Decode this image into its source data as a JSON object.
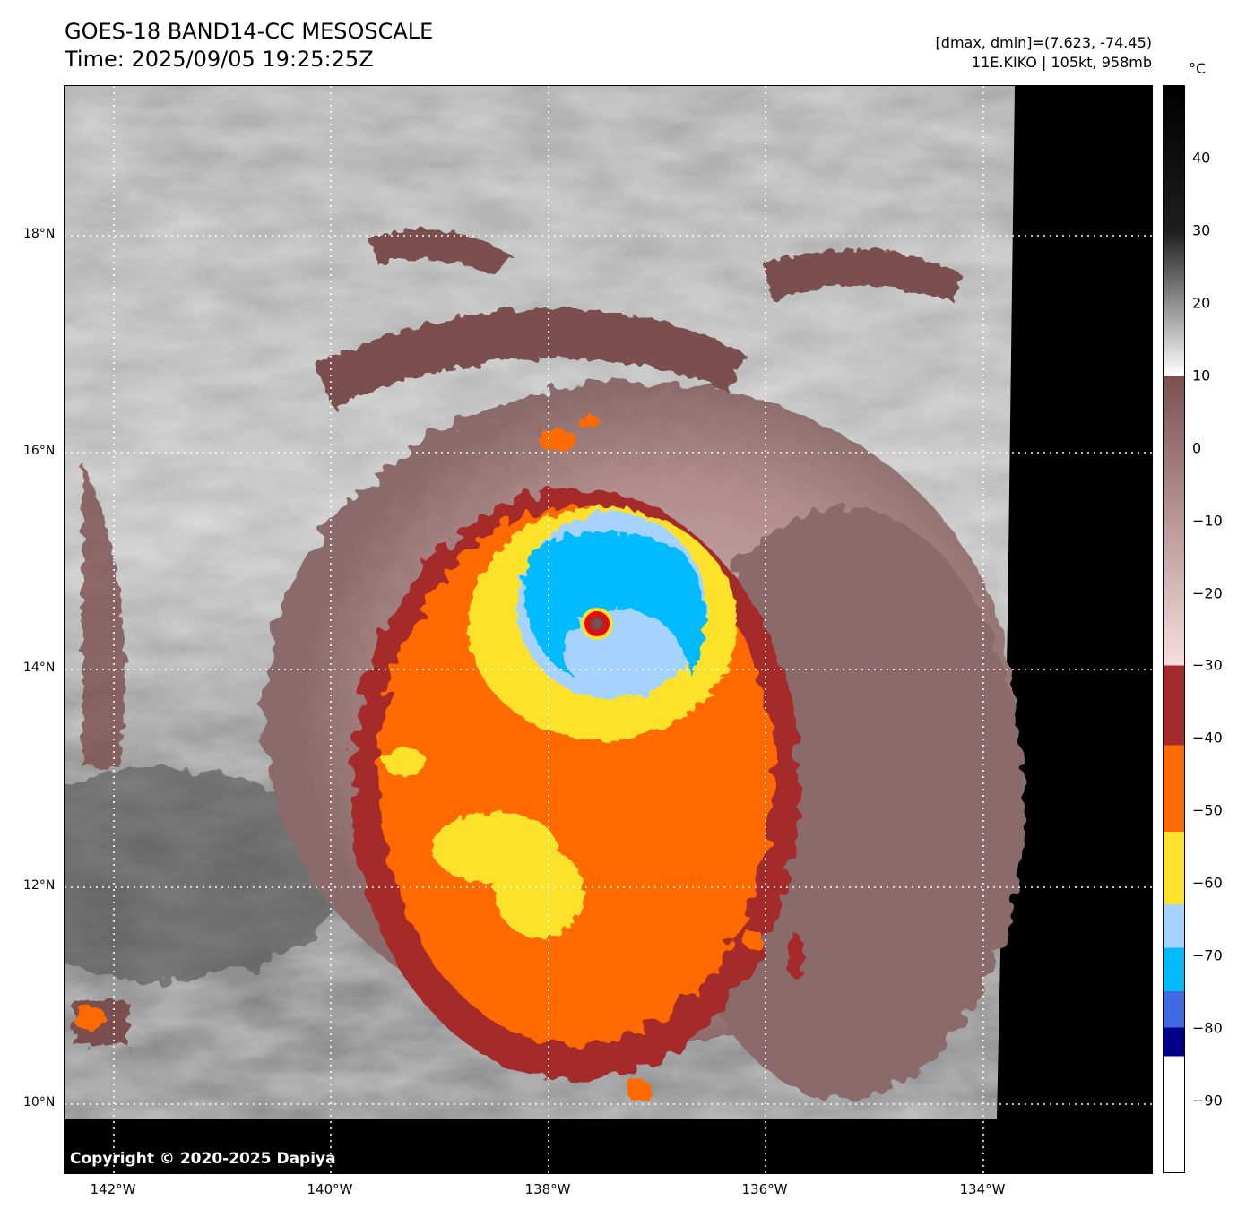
{
  "header": {
    "title_line1": "GOES-18 BAND14-CC MESOSCALE",
    "title_line2": "Time: 2025/09/05 19:25:25Z",
    "range_text": "[dmax, dmin]=(7.623, -74.45)",
    "storm_text": "11E.KIKO | 105kt, 958mb"
  },
  "map": {
    "copyright": "Copyright © 2020-2025 Dapiya",
    "lat_labels": [
      "18°N",
      "16°N",
      "14°N",
      "12°N",
      "10°N"
    ],
    "lon_labels": [
      "142°W",
      "140°W",
      "138°W",
      "136°W",
      "134°W"
    ]
  },
  "colorbar": {
    "unit": "°C",
    "tick_labels": [
      "40",
      "30",
      "20",
      "10",
      "0",
      "−10",
      "−20",
      "−30",
      "−40",
      "−50",
      "−60",
      "−70",
      "−80",
      "−90"
    ],
    "range": [
      -100,
      50
    ],
    "bands": [
      {
        "from": 50,
        "to": 30,
        "colors": [
          "#000000",
          "#1e1e1e"
        ]
      },
      {
        "from": 30,
        "to": 10,
        "colors": [
          "#1e1e1e",
          "#ffffff"
        ]
      },
      {
        "from": 10,
        "to": -30,
        "colors": [
          "#7b5050",
          "#f6dede"
        ]
      },
      {
        "from": -30,
        "to": -41,
        "colors": [
          "#a52a2a",
          "#a52a2a"
        ]
      },
      {
        "from": -41,
        "to": -53,
        "colors": [
          "#ff6a00",
          "#ff6a00"
        ]
      },
      {
        "from": -53,
        "to": -63,
        "colors": [
          "#fde22a",
          "#fde22a"
        ]
      },
      {
        "from": -63,
        "to": -69,
        "colors": [
          "#a6d2ff",
          "#a6d2ff"
        ]
      },
      {
        "from": -69,
        "to": -75,
        "colors": [
          "#00bbff",
          "#00bbff"
        ]
      },
      {
        "from": -75,
        "to": -80,
        "colors": [
          "#4169e1",
          "#4169e1"
        ]
      },
      {
        "from": -80,
        "to": -84,
        "colors": [
          "#00008b",
          "#00008b"
        ]
      },
      {
        "from": -84,
        "to": -100,
        "colors": [
          "#ffffff",
          "#ffffff"
        ]
      }
    ]
  },
  "colors": {
    "background_cloud": "#9a9a9a",
    "cold_cloud": "#7b5050",
    "core_red": "#a52a2a",
    "orange": "#ff6a00",
    "yellow": "#fde22a",
    "light_blue": "#a6d2ff",
    "cyan": "#00bbff",
    "eye_ring": "#ff0000"
  }
}
